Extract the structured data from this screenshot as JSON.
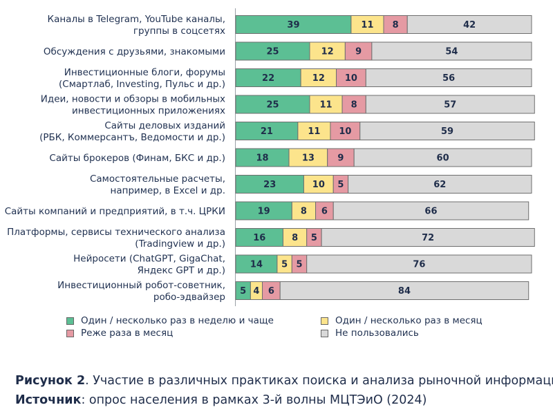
{
  "chart_data": {
    "type": "bar",
    "stacked": true,
    "orientation": "horizontal",
    "unit": "%",
    "xlim": [
      0,
      100
    ],
    "categories": [
      [
        "Каналы в Telegram, YouTube каналы,",
        "группы в соцсетях"
      ],
      [
        "Обсуждения с друзьями, знакомыми"
      ],
      [
        "Инвестиционные блоги, форумы",
        "(Смартлаб, Investing, Пульс и др.)"
      ],
      [
        "Идеи, новости и обзоры в мобильных",
        "инвестиционных приложениях"
      ],
      [
        "Сайты деловых изданий",
        "(РБК, Коммерсантъ, Ведомости и др.)"
      ],
      [
        "Сайты брокеров (Финам, БКС и др.)"
      ],
      [
        "Самостоятельные расчеты,",
        "например, в Excel и др."
      ],
      [
        "Сайты компаний и предприятий, в т.ч. ЦРКИ"
      ],
      [
        "Платформы, сервисы технического анализа",
        "(Tradingview и др.)"
      ],
      [
        "Нейросети (ChatGPT, GigaChat,",
        "Яндекс GPT и др.)"
      ],
      [
        "Инвестиционный робот-советник,",
        "робо-эдвайзер"
      ]
    ],
    "series": [
      {
        "name": "Один / несколько раз в неделю и чаще",
        "color": "#5cbf94",
        "values": [
          39,
          25,
          22,
          25,
          21,
          18,
          23,
          19,
          16,
          14,
          5
        ]
      },
      {
        "name": "Один / несколько раз в месяц",
        "color": "#fce48c",
        "values": [
          11,
          12,
          12,
          11,
          11,
          13,
          10,
          8,
          8,
          5,
          4
        ]
      },
      {
        "name": "Реже раза в месяц",
        "color": "#e59aa3",
        "values": [
          8,
          9,
          10,
          8,
          10,
          9,
          5,
          6,
          5,
          5,
          6
        ]
      },
      {
        "name": "Не пользовались",
        "color": "#d9d9d9",
        "values": [
          42,
          54,
          56,
          57,
          59,
          60,
          62,
          66,
          72,
          76,
          84
        ]
      }
    ]
  },
  "caption": {
    "figure_label": "Рисунок 2",
    "figure_text": ". Участие в различных практиках поиска и анализа рыночной информации",
    "source_label": "Источник",
    "source_text": ": опрос населения в рамках 3-й волны МЦТЭиО (2024)"
  }
}
